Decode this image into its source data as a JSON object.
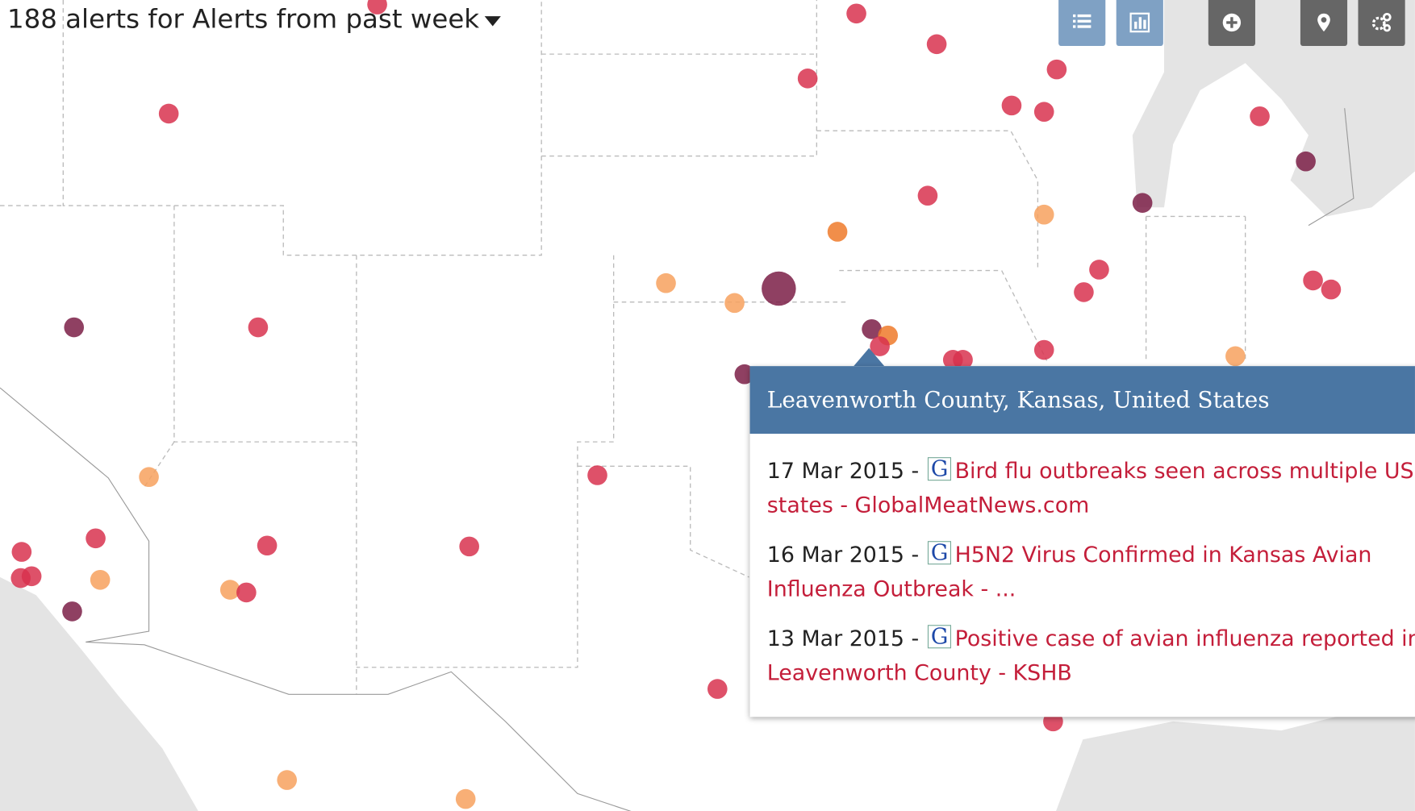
{
  "header": {
    "title": "188 alerts for Alerts from past week"
  },
  "popup": {
    "location": "Leavenworth County, Kansas, United States",
    "items": [
      {
        "date": "17 Mar 2015",
        "separator": "-",
        "title": "Bird flu outbreaks seen across multiple US states - GlobalMeatNews.com"
      },
      {
        "date": "16 Mar 2015",
        "separator": "-",
        "title": "H5N2 Virus Confirmed in Kansas Avian Influenza Outbreak - ..."
      },
      {
        "date": "13 Mar 2015",
        "separator": "-",
        "title": "Positive case of avian influenza reported in Leavenworth County - KSHB"
      }
    ]
  }
}
